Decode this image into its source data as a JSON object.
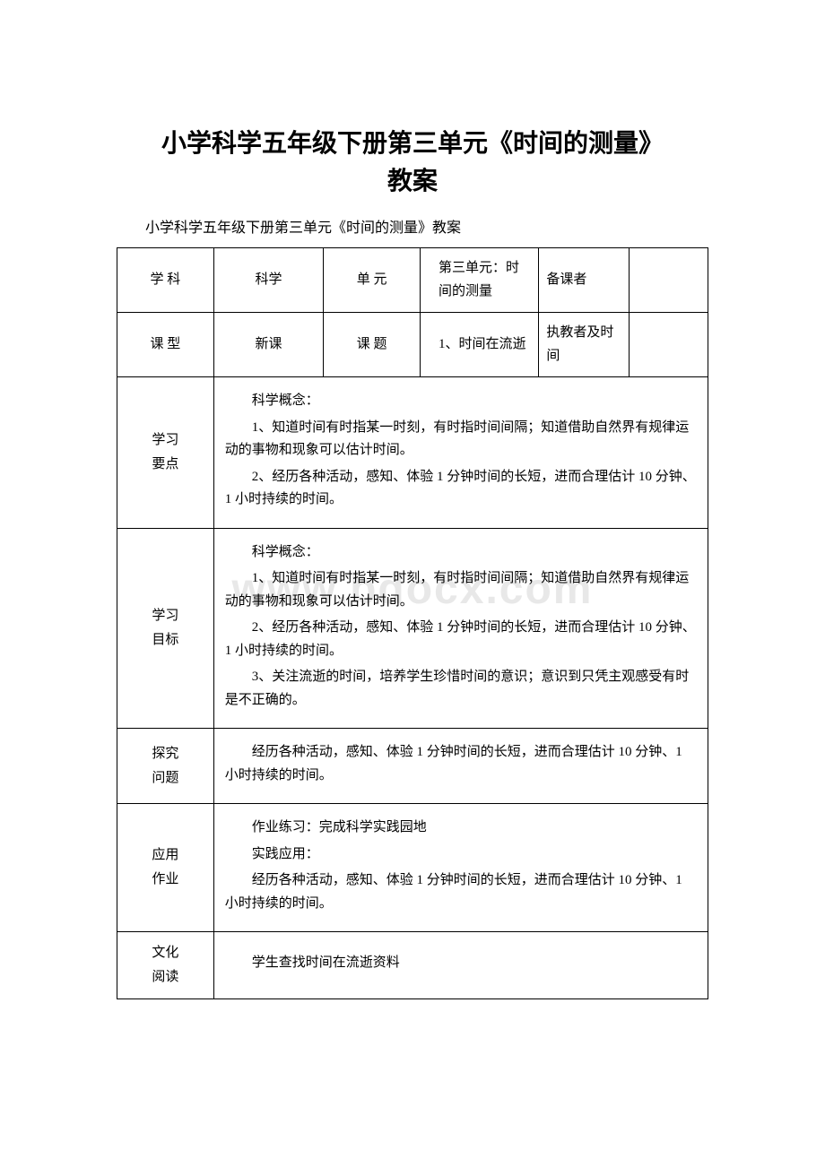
{
  "watermark": "www.bdocx.com",
  "title_line1": "小学科学五年级下册第三单元《时间的测量》",
  "title_line2": "教案",
  "subtitle": "小学科学五年级下册第三单元《时间的测量》教案",
  "row1": {
    "c1": "学 科",
    "c2": "科学",
    "c3": "单 元",
    "c4": "第三单元：时间的测量",
    "c5": "备课者",
    "c6": ""
  },
  "row2": {
    "c1": "课 型",
    "c2": "新课",
    "c3": "课 题",
    "c4": "1、时间在流逝",
    "c5": "执教者及时间",
    "c6": ""
  },
  "row3": {
    "label_l1": "学习",
    "label_l2": "要点",
    "p1": "科学概念：",
    "p2": "1、知道时间有时指某一时刻，有时指时间间隔；知道借助自然界有规律运动的事物和现象可以估计时间。",
    "p3": "2、经历各种活动，感知、体验 1 分钟时间的长短，进而合理估计 10 分钟、1 小时持续的时间。"
  },
  "row4": {
    "label_l1": "学习",
    "label_l2": "目标",
    "p1": "科学概念：",
    "p2": "1、知道时间有时指某一时刻，有时指时间间隔；知道借助自然界有规律运动的事物和现象可以估计时间。",
    "p3": "2、经历各种活动，感知、体验 1 分钟时间的长短，进而合理估计 10 分钟、1 小时持续的时间。",
    "p4": "3、关注流逝的时间，培养学生珍惜时间的意识；意识到只凭主观感受有时是不正确的。"
  },
  "row5": {
    "label_l1": "探究",
    "label_l2": "问题",
    "p1": "经历各种活动，感知、体验 1 分钟时间的长短，进而合理估计 10 分钟、1 小时持续的时间。"
  },
  "row6": {
    "label_l1": "应用",
    "label_l2": "作业",
    "p1": "作业练习：完成科学实践园地",
    "p2": "实践应用：",
    "p3": "经历各种活动，感知、体验 1 分钟时间的长短，进而合理估计 10 分钟、1 小时持续的时间。"
  },
  "row7": {
    "label_l1": "文化",
    "label_l2": "阅读",
    "p1": "学生查找时间在流逝资料"
  }
}
